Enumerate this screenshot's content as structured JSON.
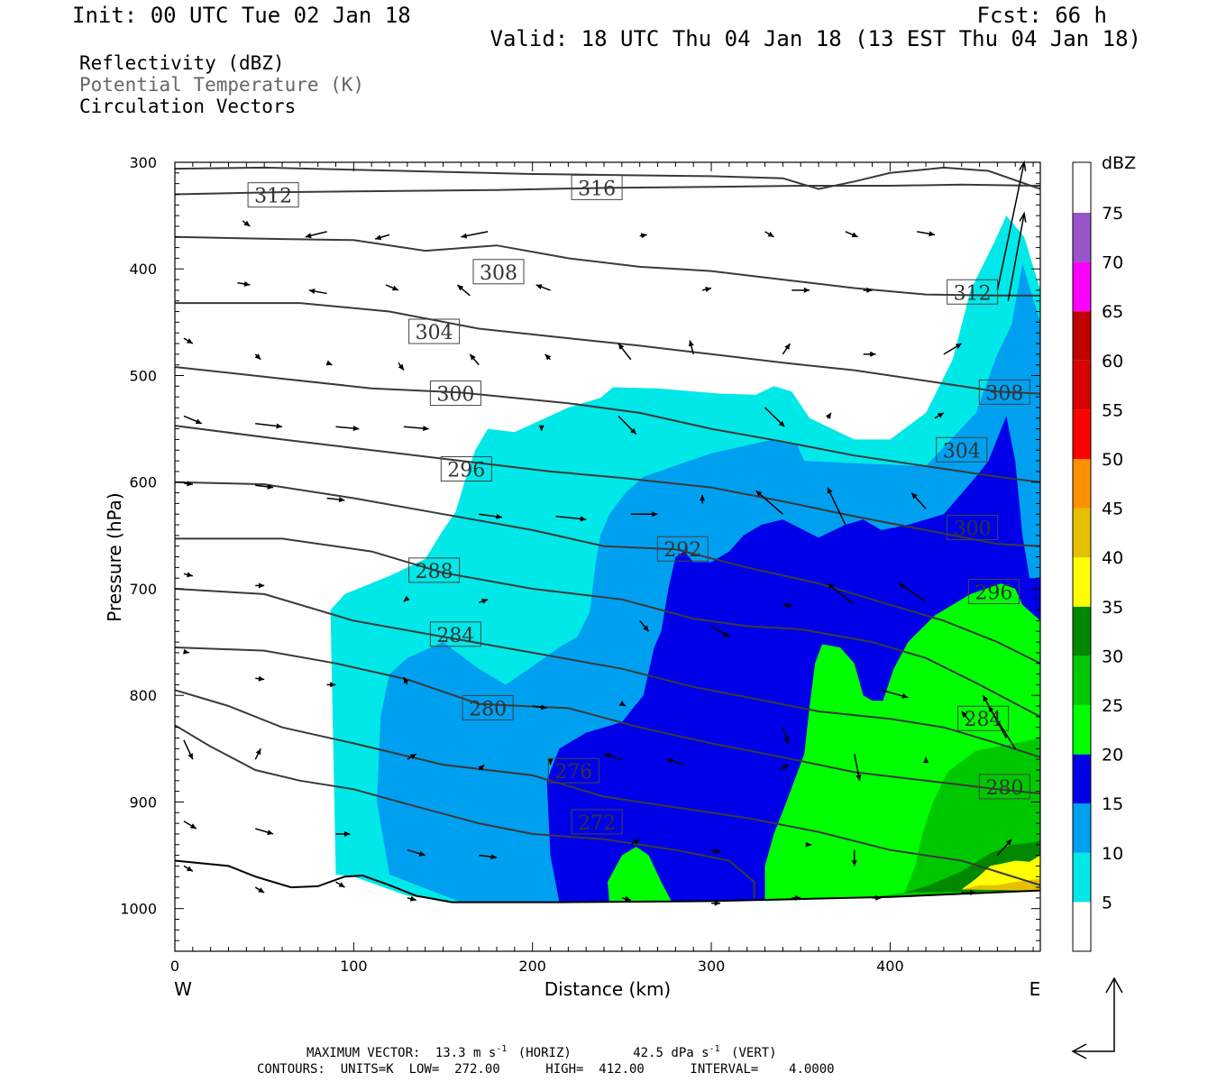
{
  "header": {
    "init": "Init: 00 UTC Tue 02 Jan 18",
    "fcst": "Fcst:   66 h",
    "valid": "Valid: 18 UTC Thu 04 Jan 18 (13 EST Thu 04 Jan 18)"
  },
  "fields": {
    "reflectivity": "Reflectivity (dBZ)",
    "theta": "Potential Temperature (K)",
    "vectors": "Circulation Vectors"
  },
  "footer": {
    "max_vector_prefix": "MAXIMUM VECTOR:",
    "horiz_value": "13.3 m s",
    "horiz_unit": "(HORIZ)",
    "vert_value": "42.5 dPa s",
    "vert_unit": "(VERT)",
    "exponent": "-1",
    "contours": "CONTOURS:  UNITS=K  LOW=  272.00      HIGH=  412.00      INTERVAL=    4.0000"
  },
  "colors": {
    "contour": "#3a3a3a",
    "ground": "#000000",
    "dbz_5": "#00e8e8",
    "dbz_10": "#00a0f0",
    "dbz_15": "#0000e8",
    "dbz_20": "#00ff00",
    "dbz_25": "#00c800",
    "dbz_30": "#008800",
    "dbz_35": "#ffff00",
    "dbz_40": "#e6c000",
    "dbz_45": "#ff9000",
    "dbz_50": "#ff0000",
    "dbz_55": "#d80000",
    "dbz_60": "#c00000",
    "dbz_65": "#ff00ff",
    "dbz_70": "#9955c9"
  },
  "chart_data": {
    "type": "heatmap",
    "xlabel": "Distance (km)",
    "ylabel": "Pressure (hPa)",
    "xlim": [
      0,
      484
    ],
    "ylim": [
      1040,
      300
    ],
    "x_ticks": [
      "0",
      "100",
      "200",
      "300",
      "400"
    ],
    "y_ticks": [
      "300",
      "400",
      "500",
      "600",
      "700",
      "800",
      "900",
      "1000"
    ],
    "x_start_label": "W",
    "x_end_label": "E",
    "colorbar": {
      "unit": "dBZ",
      "levels": [
        "5",
        "10",
        "15",
        "20",
        "25",
        "30",
        "35",
        "40",
        "45",
        "50",
        "55",
        "60",
        "65",
        "70",
        "75"
      ]
    },
    "contour_labels": [
      {
        "value": "312",
        "x": 55,
        "p": 331
      },
      {
        "value": "316",
        "x": 236,
        "p": 324
      },
      {
        "value": "308",
        "x": 181,
        "p": 403
      },
      {
        "value": "304",
        "x": 145,
        "p": 459
      },
      {
        "value": "300",
        "x": 157,
        "p": 517
      },
      {
        "value": "296",
        "x": 163,
        "p": 588
      },
      {
        "value": "292",
        "x": 284,
        "p": 663
      },
      {
        "value": "288",
        "x": 145,
        "p": 683
      },
      {
        "value": "284",
        "x": 157,
        "p": 743
      },
      {
        "value": "280",
        "x": 175,
        "p": 812
      },
      {
        "value": "276",
        "x": 223,
        "p": 871
      },
      {
        "value": "272",
        "x": 236,
        "p": 919
      },
      {
        "value": "312",
        "x": 446,
        "p": 422
      },
      {
        "value": "308",
        "x": 464,
        "p": 516
      },
      {
        "value": "304",
        "x": 440,
        "p": 570
      },
      {
        "value": "300",
        "x": 446,
        "p": 643
      },
      {
        "value": "296",
        "x": 458,
        "p": 703
      },
      {
        "value": "284",
        "x": 452,
        "p": 822
      },
      {
        "value": "280",
        "x": 464,
        "p": 886
      }
    ]
  }
}
